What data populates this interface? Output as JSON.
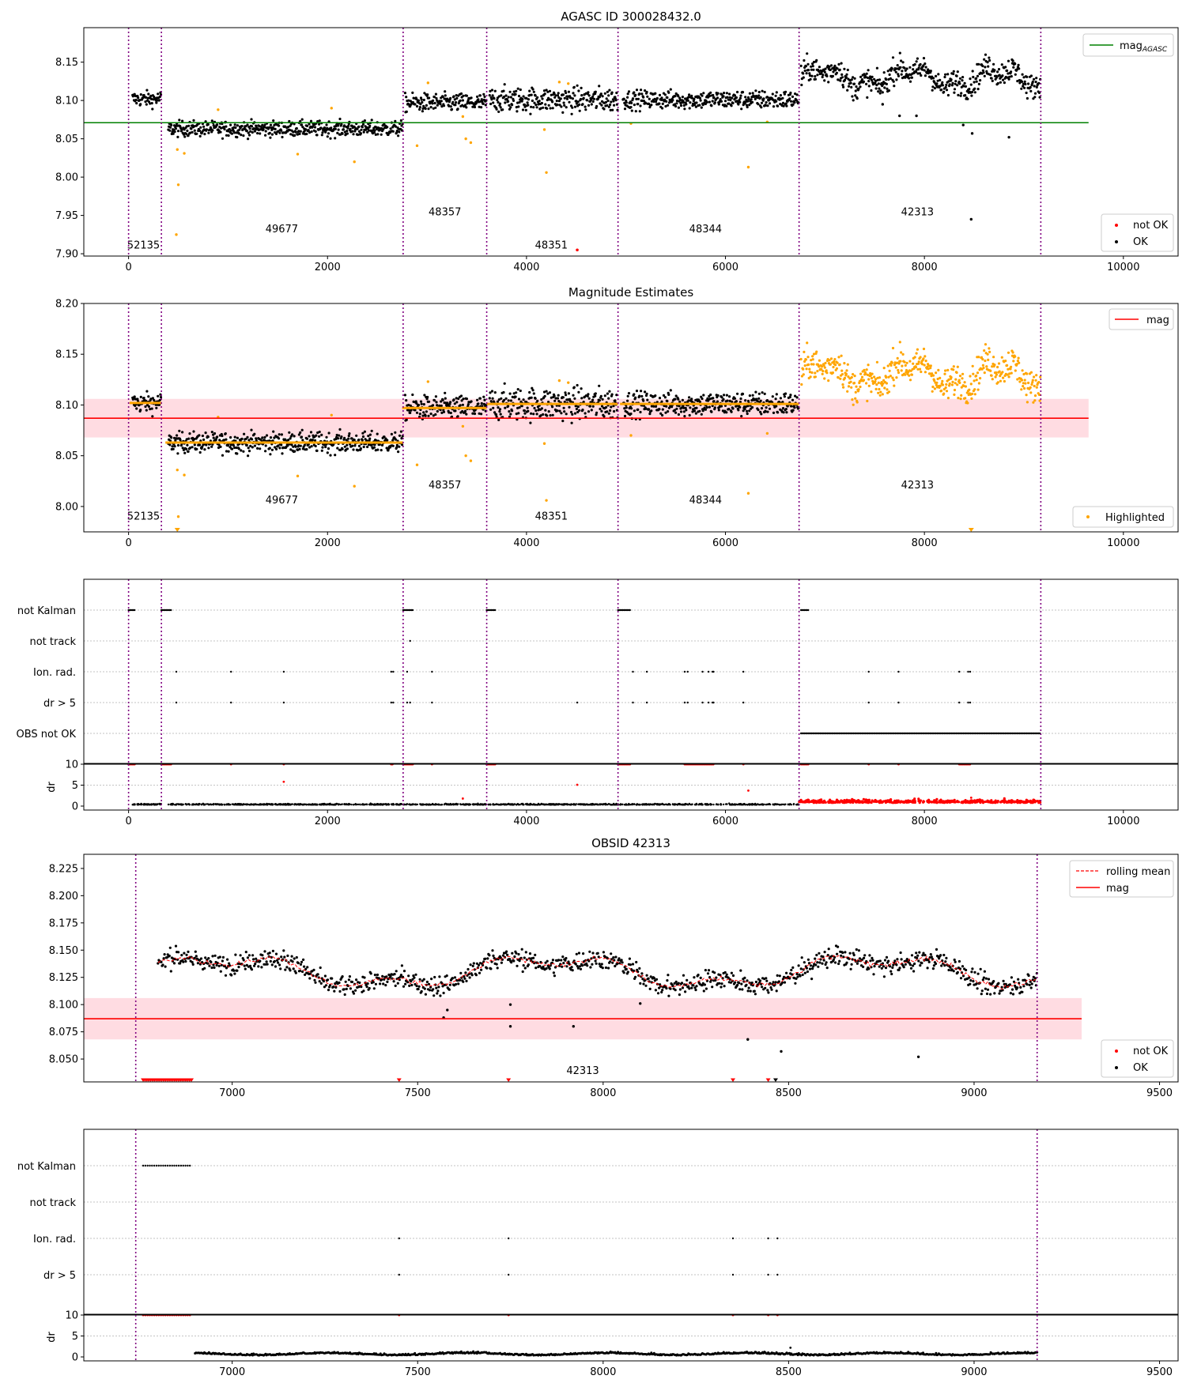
{
  "colors": {
    "ok": "#000000",
    "not_ok": "#ff0000",
    "highlight": "#ffa500",
    "agasc_line": "#008000",
    "mag_line": "#ff0000",
    "band": "#ffc0cb",
    "obsid_line": "#800080",
    "grid": "#b0b0b0"
  },
  "chart_data": [
    {
      "id": "agasc",
      "type": "scatter",
      "title": "AGASC ID 300028432.0",
      "xlim": [
        -450,
        10550
      ],
      "ylim": [
        7.897,
        8.195
      ],
      "xticks": [
        0,
        2000,
        4000,
        6000,
        8000,
        10000
      ],
      "yticks": [
        7.9,
        7.95,
        8.0,
        8.05,
        8.1,
        8.15
      ],
      "ytick_labels": [
        "7.90",
        "7.95",
        "8.00",
        "8.05",
        "8.10",
        "8.15"
      ],
      "legend_top": [
        "mag_AGASC"
      ],
      "legend_bottom": [
        "not OK",
        "OK"
      ],
      "hline": {
        "y": 8.071,
        "x0": -450,
        "x1": 9650,
        "name": "mag_AGASC"
      },
      "obsid_boundaries": [
        0,
        330,
        2760,
        3600,
        4920,
        6740,
        9170
      ],
      "segments": [
        {
          "obsid": "52135",
          "x0": 40,
          "x1": 330,
          "mean": 8.102,
          "std": 0.005,
          "label_x": 150,
          "label_y": 7.907
        },
        {
          "obsid": "49677",
          "x0": 400,
          "x1": 2760,
          "mean": 8.063,
          "std": 0.005,
          "label_x": 1540,
          "label_y": 7.928
        },
        {
          "obsid": "48357",
          "x0": 2780,
          "x1": 3600,
          "mean": 8.097,
          "std": 0.006,
          "label_x": 3180,
          "label_y": 7.95
        },
        {
          "obsid": "48351",
          "x0": 3630,
          "x1": 4920,
          "mean": 8.101,
          "std": 0.008,
          "label_x": 4250,
          "label_y": 7.907
        },
        {
          "obsid": "48344",
          "x0": 4970,
          "x1": 6740,
          "mean": 8.101,
          "std": 0.006,
          "label_x": 5800,
          "label_y": 7.928
        },
        {
          "obsid": "42313",
          "x0": 6760,
          "x1": 9170,
          "mean": 8.13,
          "std": 0.008,
          "label_x": 7930,
          "label_y": 7.95
        }
      ]
    },
    {
      "id": "estimates",
      "type": "scatter",
      "title": "Magnitude Estimates",
      "xlim": [
        -450,
        10550
      ],
      "ylim": [
        7.975,
        8.2
      ],
      "xticks": [
        0,
        2000,
        4000,
        6000,
        8000,
        10000
      ],
      "yticks": [
        8.0,
        8.05,
        8.1,
        8.15,
        8.2
      ],
      "ytick_labels": [
        "8.00",
        "8.05",
        "8.10",
        "8.15",
        "8.20"
      ],
      "legend_top": [
        "mag"
      ],
      "legend_bottom": [
        "Highlighted"
      ],
      "mag": 8.087,
      "band": [
        8.068,
        8.106
      ]
    },
    {
      "id": "flags",
      "type": "scatter",
      "xlim": [
        -450,
        10550
      ],
      "flag_labels": [
        "not Kalman",
        "not track",
        "Ion. rad.",
        "dr > 5",
        "OBS not OK"
      ],
      "dr_ylim": [
        0,
        10
      ],
      "dr_yticks": [
        0,
        5,
        10
      ],
      "dr_label": "dr",
      "xticks": [
        0,
        2000,
        4000,
        6000,
        8000,
        10000
      ]
    },
    {
      "id": "obsid",
      "type": "scatter",
      "title": "OBSID 42313",
      "xlim": [
        6600,
        9550
      ],
      "ylim": [
        8.029,
        8.238
      ],
      "xticks": [
        7000,
        7500,
        8000,
        8500,
        9000,
        9500
      ],
      "yticks": [
        8.05,
        8.075,
        8.1,
        8.125,
        8.15,
        8.175,
        8.2,
        8.225
      ],
      "ytick_labels": [
        "8.050",
        "8.075",
        "8.100",
        "8.125",
        "8.150",
        "8.175",
        "8.200",
        "8.225"
      ],
      "legend_top": [
        "rolling mean",
        "mag"
      ],
      "legend_bottom": [
        "not OK",
        "OK"
      ],
      "obsid_label": "42313",
      "mag": 8.087,
      "band": [
        8.068,
        8.106
      ]
    },
    {
      "id": "obsid_flags",
      "type": "scatter",
      "xlim": [
        6600,
        9550
      ],
      "flag_labels": [
        "not Kalman",
        "not track",
        "Ion. rad.",
        "dr > 5"
      ],
      "dr_ylim": [
        0,
        10
      ],
      "dr_yticks": [
        0,
        5,
        10
      ],
      "dr_label": "dr",
      "xticks": [
        7000,
        7500,
        8000,
        8500,
        9000,
        9500
      ]
    }
  ]
}
